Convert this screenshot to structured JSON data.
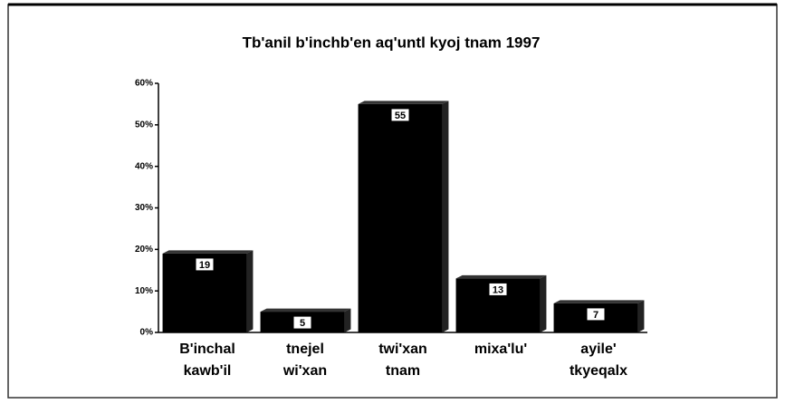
{
  "chart_data": {
    "type": "bar",
    "title": "Tb'anil b'inchb'en aq'untl kyoj tnam 1997",
    "categories": [
      "B'inchal kawb'il",
      "tnejel wi'xan",
      "twi'xan tnam",
      "mixa'lu'",
      "ayile' tkyeqalx"
    ],
    "values": [
      19,
      5,
      55,
      13,
      7
    ],
    "color": "#000000",
    "ylim": [
      0,
      60
    ],
    "yticks": [
      {
        "value": 0,
        "label": "0%"
      },
      {
        "value": 10,
        "label": "10%"
      },
      {
        "value": 20,
        "label": "20%"
      },
      {
        "value": 30,
        "label": "30%"
      },
      {
        "value": 40,
        "label": "40%"
      },
      {
        "value": 50,
        "label": "50%"
      },
      {
        "value": 60,
        "label": "60%"
      }
    ],
    "grid": false
  }
}
